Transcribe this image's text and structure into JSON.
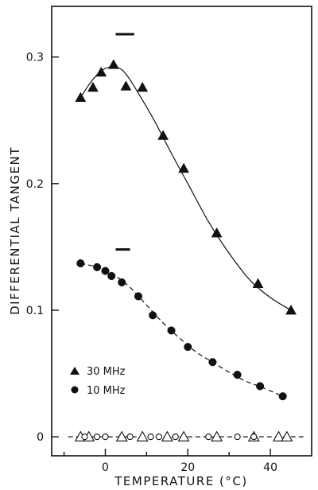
{
  "chart_data": {
    "type": "scatter",
    "xlabel": "TEMPERATURE (°C)",
    "ylabel": "DIFFERENTIAL TANGENT",
    "xlim": [
      -13,
      50
    ],
    "ylim": [
      -0.015,
      0.34
    ],
    "xticks": [
      0,
      20,
      40
    ],
    "xtick_labels": [
      "0",
      "20",
      "40"
    ],
    "yticks": [
      0,
      0.1,
      0.2,
      0.3
    ],
    "ytick_labels": [
      "0",
      "0.1",
      "0.2",
      "0.3"
    ],
    "grid": false,
    "legend_position": "bottom-left",
    "series": [
      {
        "name": "30 MHz",
        "marker": "triangle-filled",
        "x": [
          -6,
          -3,
          -1,
          2,
          5,
          9,
          14,
          19,
          27,
          37,
          45
        ],
        "y": [
          0.268,
          0.276,
          0.288,
          0.294,
          0.277,
          0.276,
          0.238,
          0.212,
          0.161,
          0.121,
          0.1
        ]
      },
      {
        "name": "10 MHz",
        "marker": "circle-filled",
        "x": [
          -6,
          -2,
          0,
          1.5,
          4,
          8,
          11.5,
          16,
          20,
          26,
          32,
          37.5,
          43
        ],
        "y": [
          0.137,
          0.134,
          0.131,
          0.127,
          0.122,
          0.111,
          0.096,
          0.084,
          0.071,
          0.059,
          0.049,
          0.04,
          0.032
        ]
      },
      {
        "marker": "triangle-open",
        "x": [
          -6,
          -4,
          4,
          9,
          15,
          19,
          27,
          36,
          42,
          44
        ],
        "y": [
          0,
          0,
          0,
          0,
          0,
          0,
          0,
          0,
          0,
          0
        ]
      },
      {
        "marker": "circle-open",
        "x": [
          -5,
          -2,
          0,
          6,
          11,
          13,
          17,
          25,
          32,
          36
        ],
        "y": [
          0,
          0,
          0,
          0,
          0,
          0,
          0,
          0,
          0,
          0
        ]
      }
    ],
    "fit_curves": [
      {
        "style": "solid",
        "x": [
          -6,
          -4,
          -2,
          0,
          2,
          4,
          6,
          9,
          12,
          16,
          20,
          25,
          30,
          35,
          40,
          45
        ],
        "y": [
          0.268,
          0.278,
          0.286,
          0.291,
          0.292,
          0.29,
          0.282,
          0.266,
          0.249,
          0.224,
          0.2,
          0.17,
          0.145,
          0.124,
          0.11,
          0.1
        ]
      },
      {
        "style": "dashed",
        "x": [
          -6,
          -2,
          2,
          6,
          10,
          14,
          18,
          22,
          26,
          30,
          34,
          38,
          43
        ],
        "y": [
          0.137,
          0.134,
          0.128,
          0.118,
          0.104,
          0.09,
          0.078,
          0.067,
          0.059,
          0.051,
          0.044,
          0.039,
          0.032
        ]
      },
      {
        "style": "dashed",
        "x": [
          -9,
          48
        ],
        "y": [
          0,
          0
        ]
      }
    ],
    "range_bars": [
      {
        "x": [
          2.5,
          7
        ],
        "y": 0.318
      },
      {
        "x": [
          2.5,
          6
        ],
        "y": 0.148
      }
    ]
  }
}
